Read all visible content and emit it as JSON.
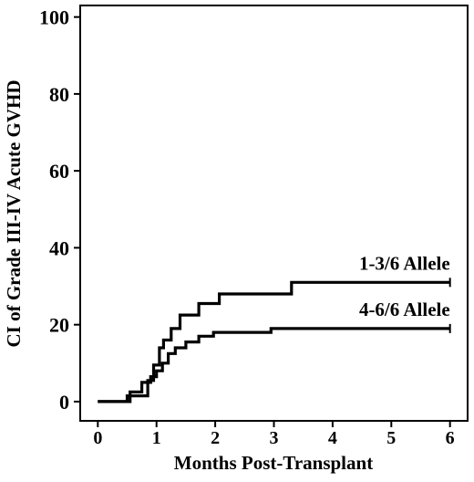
{
  "chart_data": {
    "type": "line",
    "xlabel": "Months Post-Transplant",
    "ylabel": "CI of Grade III-IV Acute GVHD",
    "xlim": [
      -0.3,
      6.3
    ],
    "ylim": [
      -5,
      103
    ],
    "x_ticks": [
      0,
      1,
      2,
      3,
      4,
      5,
      6
    ],
    "y_ticks": [
      0,
      20,
      40,
      60,
      80,
      100
    ],
    "grid": false,
    "legend": "none",
    "step": true,
    "series": [
      {
        "name": "1-3/6 Allele",
        "color": "#000000",
        "x": [
          0,
          0.5,
          0.5,
          0.85,
          0.85,
          0.95,
          0.95,
          1.05,
          1.05,
          1.12,
          1.12,
          1.25,
          1.25,
          1.4,
          1.4,
          1.72,
          1.72,
          2.07,
          2.07,
          3.3,
          3.3,
          6.0
        ],
        "y": [
          0,
          0,
          1.5,
          1.5,
          5.5,
          5.5,
          9.5,
          9.5,
          14,
          14,
          16,
          16,
          19,
          19,
          22.5,
          22.5,
          25.5,
          25.5,
          28,
          28,
          31,
          31
        ]
      },
      {
        "name": "4-6/6 Allele",
        "color": "#000000",
        "x": [
          0,
          0.55,
          0.55,
          0.75,
          0.75,
          0.9,
          0.9,
          1.0,
          1.0,
          1.1,
          1.1,
          1.2,
          1.2,
          1.32,
          1.32,
          1.5,
          1.5,
          1.72,
          1.72,
          1.97,
          1.97,
          2.95,
          2.95,
          6.0
        ],
        "y": [
          0,
          0,
          2.5,
          2.5,
          5,
          5,
          6.5,
          6.5,
          8,
          8,
          10,
          10,
          12.5,
          12.5,
          14,
          14,
          15.5,
          15.5,
          17,
          17,
          18,
          18,
          19,
          19
        ]
      }
    ]
  }
}
